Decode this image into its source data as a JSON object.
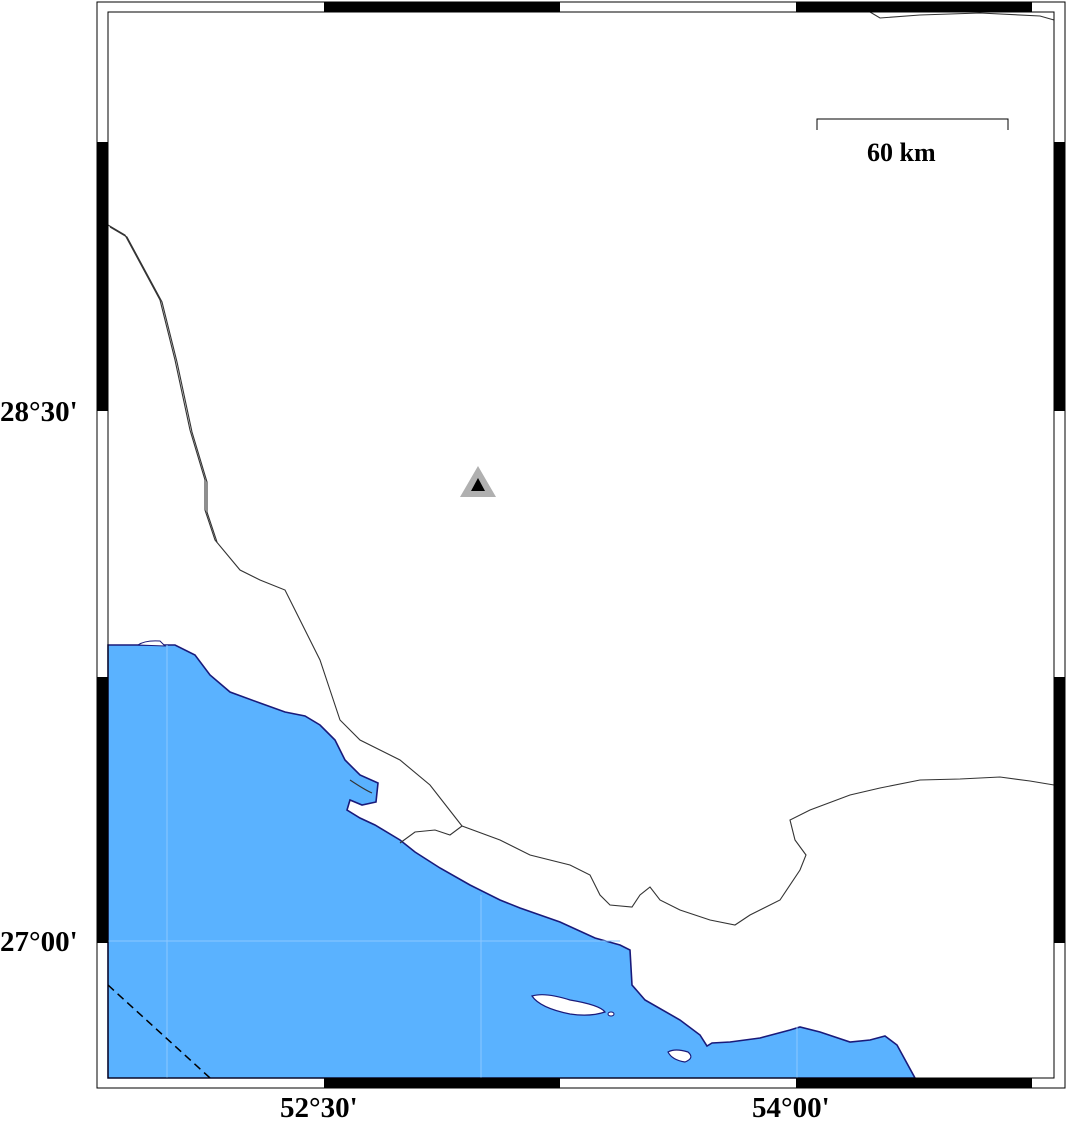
{
  "map": {
    "lat_labels": [
      "28°30'",
      "27°00'"
    ],
    "lon_labels": [
      "52°30'",
      "54°00'"
    ],
    "scale_bar": {
      "label": "60 km"
    },
    "colors": {
      "water": "#5ab2ff",
      "coastline": "#1a1a7a",
      "borders": "#333333",
      "frame": "#000000",
      "marker": "#b0b0b0",
      "marker_inner": "#000000"
    },
    "marker": {
      "icon": "triangle-station-icon"
    }
  }
}
